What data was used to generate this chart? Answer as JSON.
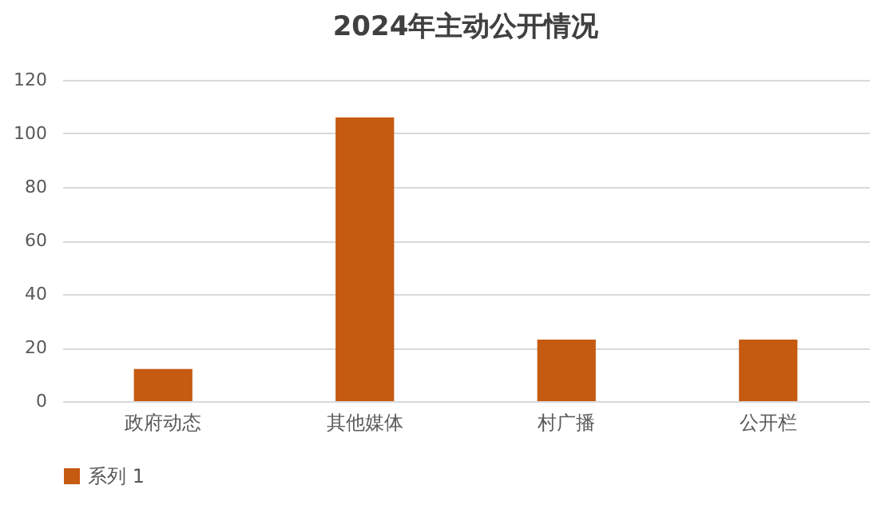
{
  "chart_data": {
    "type": "bar",
    "title": "2024年主动公开情况",
    "categories": [
      "政府动态",
      "其他媒体",
      "村广播",
      "公开栏"
    ],
    "series": [
      {
        "name": "系列 1",
        "color": "#c55a11",
        "values": [
          12,
          106,
          23,
          23
        ]
      }
    ],
    "ylim": [
      0,
      120
    ],
    "yticks": [
      0,
      20,
      40,
      60,
      80,
      100,
      120
    ],
    "grid": "y",
    "legend": "bottom"
  }
}
